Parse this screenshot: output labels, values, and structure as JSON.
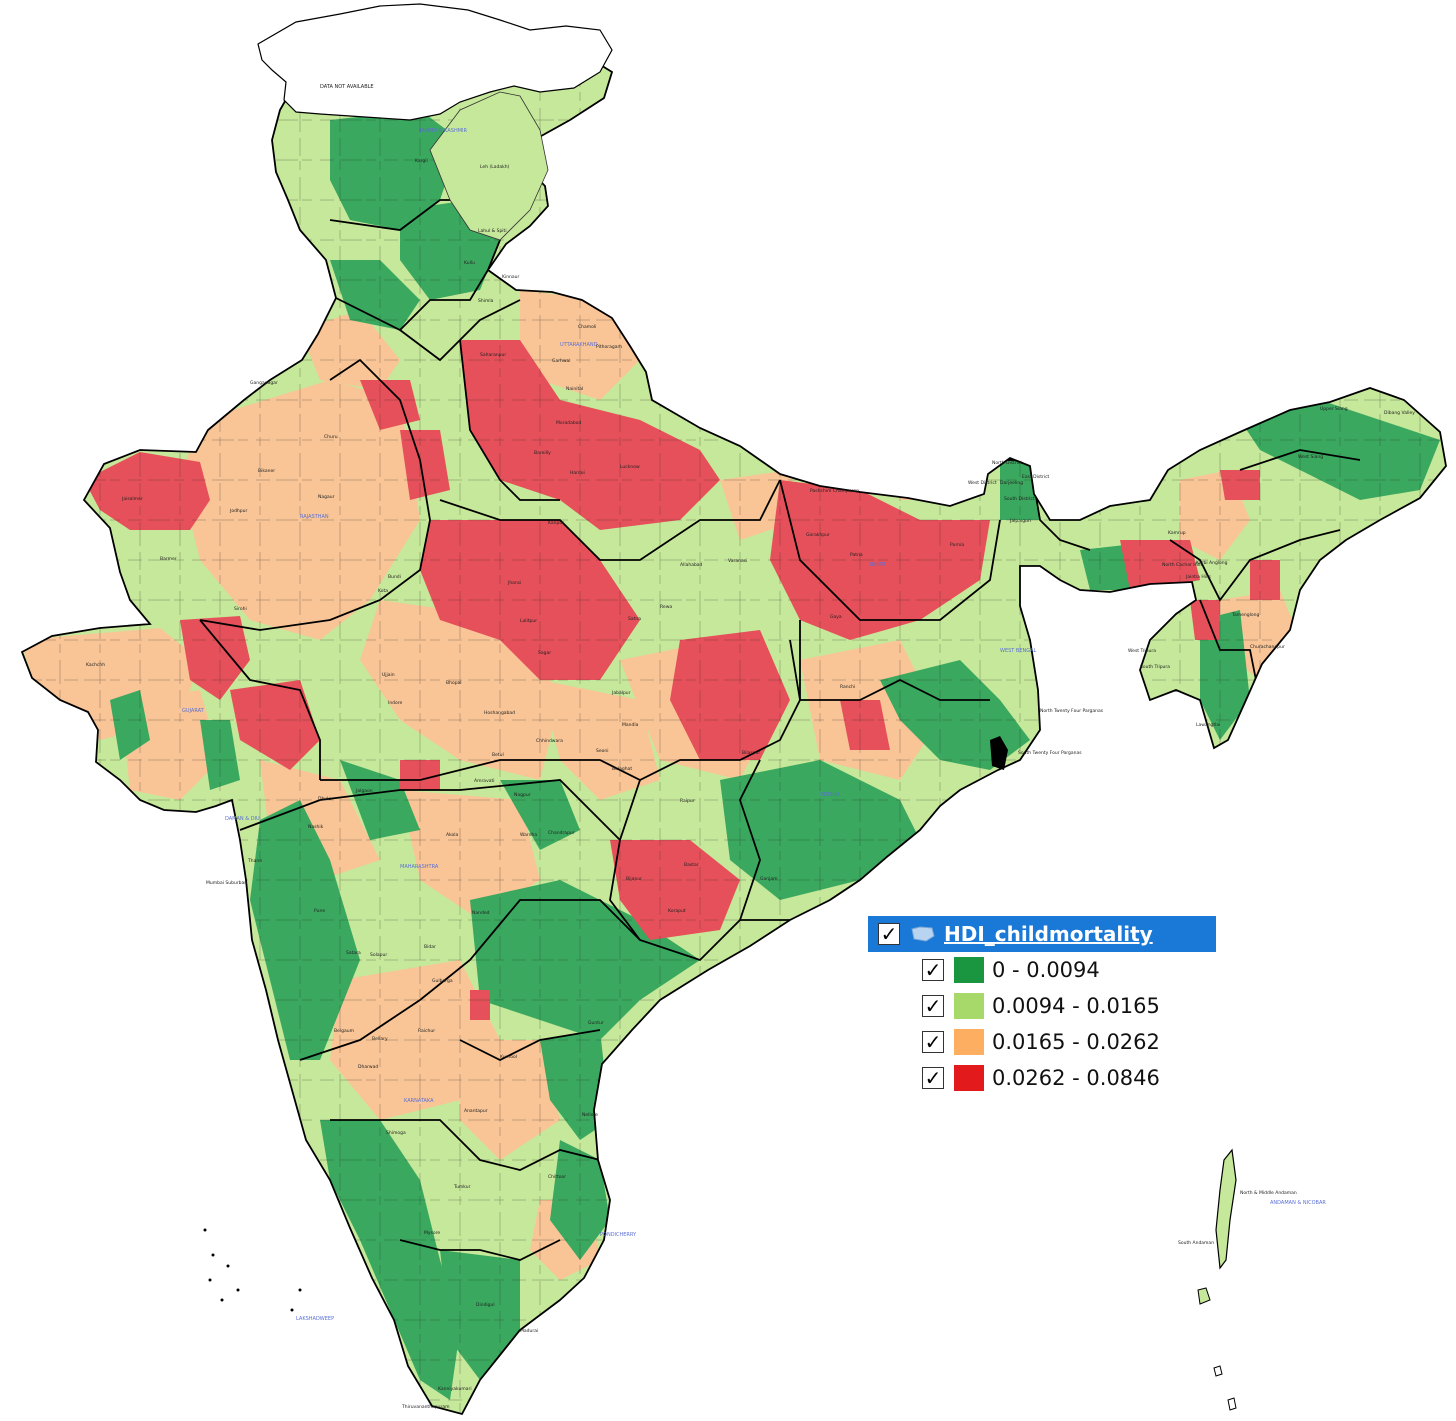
{
  "map": {
    "no_data_label": "DATA NOT AVAILABLE",
    "state_labels": [
      "JAMMU & KASHMIR",
      "UTTARAKHAND",
      "RAJASTHAN",
      "GUJARAT",
      "MAHARASHTRA",
      "KARNATAKA",
      "BIHAR",
      "ODISHA",
      "WEST BENGAL",
      "PONDICHERRY",
      "LAKSHADWEEP",
      "DAMAN & DIU",
      "ANDAMAN & NICOBAR"
    ],
    "district_labels": [
      "Leh (Ladakh)",
      "Kargil",
      "Jaisalmer",
      "Bikaner",
      "Jodhpur",
      "Barmer",
      "Kachchh",
      "Sirohi",
      "Churu",
      "Nagaur",
      "Ganganagar",
      "Kota",
      "Bundi",
      "Sagar",
      "Satna",
      "Rewa",
      "Jabalpur",
      "Nagpur",
      "Wardha",
      "Chandrapur",
      "Pune",
      "Satara",
      "Solapur",
      "Bellary",
      "Nellore",
      "Kurnool",
      "Anantapur",
      "Guntur",
      "Ganjam",
      "Koraput",
      "Bastar",
      "Bijapur",
      "Raipur",
      "Bilaspur",
      "Ranchi",
      "Gaya",
      "Patna",
      "Darjeeling",
      "Jalpaiguri",
      "Purnia",
      "North Twenty Four Parganas",
      "South Twenty Four Parganas",
      "Mumbai Suburban",
      "Thiruvananthapuram",
      "Kanniyakumari",
      "Dindigul",
      "Madurai",
      "Chittoor",
      "Mysore",
      "Tumkur",
      "Shimoga",
      "Dharwad",
      "Belgaum",
      "Raichur",
      "Gulbarga",
      "Bidar",
      "Nanded",
      "Akola",
      "Amravati",
      "Jalgaon",
      "Nashik",
      "Thane",
      "Dhule",
      "Indore",
      "Ujjain",
      "Bhopal",
      "Betul",
      "Hoshangabad",
      "Chhindwara",
      "Seoni",
      "Balaghat",
      "Mandla",
      "Lahul & Spiti",
      "Kinnaur",
      "Shimla",
      "Kullu",
      "Chamoli",
      "Pithoragarh",
      "Nainital",
      "Garhwal",
      "Saharanpur",
      "Moradabad",
      "Bareilly",
      "Lucknow",
      "Hardoi",
      "Kanpur",
      "Jhansi",
      "Lalitpur",
      "Allahabad",
      "Varanasi",
      "Gorakhpur",
      "Pashchim Champaran",
      "Upper Siang",
      "West Siang",
      "Dibang Valley",
      "Kamrup",
      "Karbi Anglong",
      "North Cachar Hills",
      "Jaintia Hills",
      "South Tripura",
      "West Tripura",
      "Lawangtlai",
      "Churachandpur",
      "Tamenglong",
      "North District",
      "East District",
      "West District",
      "South District",
      "North & Middle Andaman",
      "South Andaman"
    ]
  },
  "legend": {
    "layer_name": "HDI_childmortality",
    "checked": true,
    "classes": [
      {
        "label": "0 - 0.0094",
        "color": "#1a9641"
      },
      {
        "label": "0.0094 - 0.0165",
        "color": "#a6d96a"
      },
      {
        "label": "0.0165 - 0.0262",
        "color": "#fdae61"
      },
      {
        "label": "0.0262 - 0.0846",
        "color": "#e31a1c"
      }
    ]
  },
  "colors": {
    "dark_green": "#3aa85e",
    "light_green": "#c6e89a",
    "peach": "#f9c596",
    "red": "#e6505a",
    "legend_header": "#1a78d6"
  }
}
